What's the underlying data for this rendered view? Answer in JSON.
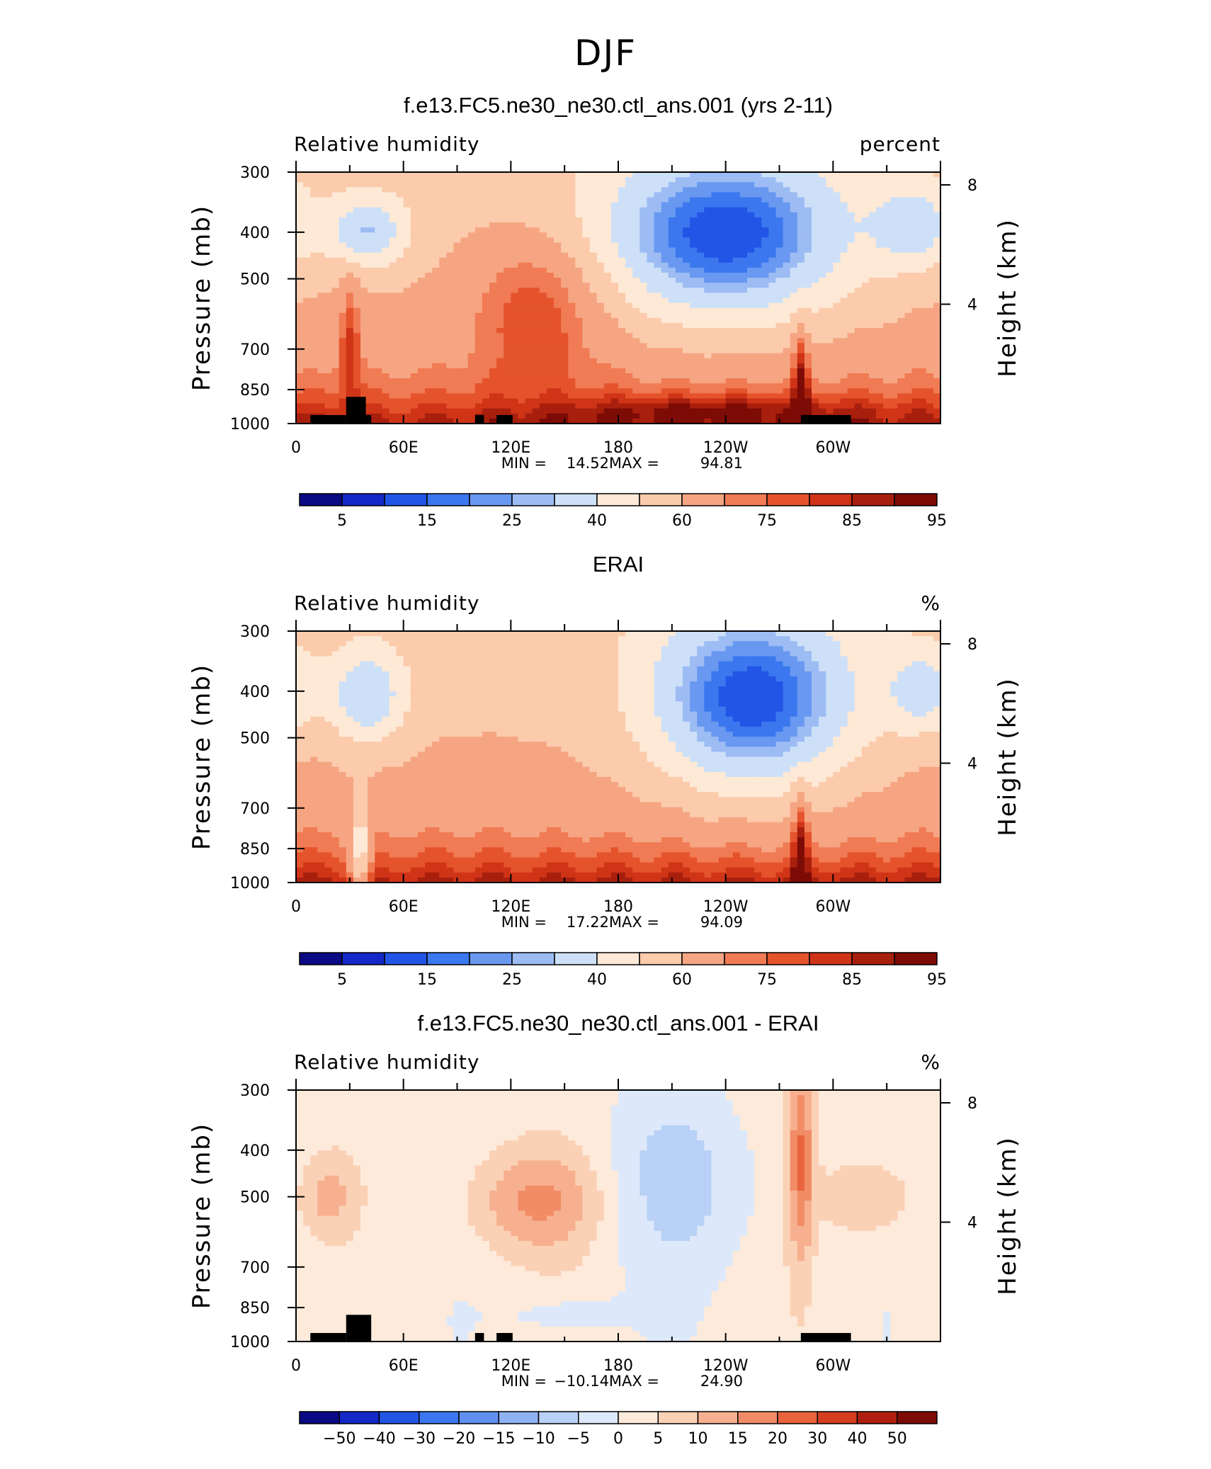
{
  "figure_title": "DJF",
  "chart_data": [
    {
      "type": "heatmap",
      "title": "f.e13.FC5.ne30_ne30.ctl_ans.001 (yrs 2-11)",
      "left_label": "Relative humidity",
      "right_label": "percent",
      "x_tick_labels": [
        "0",
        "60E",
        "120E",
        "180",
        "120W",
        "60W"
      ],
      "x_tick_longitudes": [
        0,
        60,
        120,
        180,
        240,
        300
      ],
      "xlim": [
        0,
        360
      ],
      "y_tick_labels": [
        "300",
        "400",
        "500",
        "700",
        "850",
        "1000"
      ],
      "y_tick_values": [
        300,
        400,
        500,
        700,
        850,
        1000
      ],
      "ylabel": "Pressure (mb)",
      "ylim": [
        1000,
        300
      ],
      "y_scale": "log",
      "y2label": "Height (km)",
      "y2_tick_labels": [
        "4",
        "8"
      ],
      "y2_tick_values": [
        4,
        8
      ],
      "stats": {
        "min_label": "MIN =",
        "min": "14.52",
        "max_label": "MAX =",
        "max": "94.81"
      },
      "colorbar": {
        "labels": [
          "5",
          "15",
          "25",
          "40",
          "60",
          "75",
          "85",
          "95"
        ],
        "colors": [
          "#0a0a85",
          "#1428c8",
          "#2255e6",
          "#3b77ee",
          "#6898f0",
          "#9dbcf4",
          "#cde0f8",
          "#fde9d6",
          "#fbcbac",
          "#f6a582",
          "#f07b54",
          "#e5532c",
          "#cf3417",
          "#a81f0d",
          "#7d0b06"
        ]
      },
      "terrain": [
        [
          8,
          28,
          960
        ],
        [
          28,
          39,
          880
        ],
        [
          39,
          42,
          960
        ],
        [
          100,
          105,
          960
        ],
        [
          112,
          121,
          960
        ],
        [
          282,
          310,
          960
        ]
      ],
      "features": [
        {
          "lon": 40,
          "p": 400,
          "sx": 16,
          "sy": 0.12,
          "v": -28
        },
        {
          "lon": 240,
          "p": 410,
          "sx": 48,
          "sy": 0.28,
          "v": -48
        },
        {
          "lon": 345,
          "p": 390,
          "sx": 16,
          "sy": 0.14,
          "v": -22
        },
        {
          "lon": 135,
          "p": 560,
          "sx": 26,
          "sy": 0.25,
          "v": 18
        },
        {
          "lon": 30,
          "p": 680,
          "sx": 4,
          "sy": 0.22,
          "v": 18
        },
        {
          "lon": 282,
          "p": 860,
          "sx": 3,
          "sy": 0.22,
          "v": 25
        },
        {
          "lon": 230,
          "p": 940,
          "sx": 60,
          "sy": 0.05,
          "v": 12
        }
      ]
    },
    {
      "type": "heatmap",
      "title": "ERAI",
      "left_label": "Relative humidity",
      "right_label": "%",
      "x_tick_labels": [
        "0",
        "60E",
        "120E",
        "180",
        "120W",
        "60W"
      ],
      "x_tick_longitudes": [
        0,
        60,
        120,
        180,
        240,
        300
      ],
      "xlim": [
        0,
        360
      ],
      "y_tick_labels": [
        "300",
        "400",
        "500",
        "700",
        "850",
        "1000"
      ],
      "y_tick_values": [
        300,
        400,
        500,
        700,
        850,
        1000
      ],
      "ylabel": "Pressure (mb)",
      "ylim": [
        1000,
        300
      ],
      "y_scale": "log",
      "y2label": "Height (km)",
      "y2_tick_labels": [
        "4",
        "8"
      ],
      "y2_tick_values": [
        4,
        8
      ],
      "stats": {
        "min_label": "MIN =",
        "min": "17.22",
        "max_label": "MAX =",
        "max": "94.09"
      },
      "colorbar": {
        "labels": [
          "5",
          "15",
          "25",
          "40",
          "60",
          "75",
          "85",
          "95"
        ],
        "colors": [
          "#0a0a85",
          "#1428c8",
          "#2255e6",
          "#3b77ee",
          "#6898f0",
          "#9dbcf4",
          "#cde0f8",
          "#fde9d6",
          "#fbcbac",
          "#f6a582",
          "#f07b54",
          "#e5532c",
          "#cf3417",
          "#a81f0d",
          "#7d0b06"
        ]
      },
      "terrain": [],
      "features": [
        {
          "lon": 40,
          "p": 410,
          "sx": 15,
          "sy": 0.16,
          "v": -28
        },
        {
          "lon": 255,
          "p": 420,
          "sx": 40,
          "sy": 0.3,
          "v": -48
        },
        {
          "lon": 350,
          "p": 400,
          "sx": 14,
          "sy": 0.14,
          "v": -22
        },
        {
          "lon": 36,
          "p": 900,
          "sx": 4,
          "sy": 0.2,
          "v": -30
        },
        {
          "lon": 282,
          "p": 860,
          "sx": 3,
          "sy": 0.22,
          "v": 22
        }
      ]
    },
    {
      "type": "heatmap",
      "title": "f.e13.FC5.ne30_ne30.ctl_ans.001 - ERAI",
      "left_label": "Relative humidity",
      "right_label": "%",
      "x_tick_labels": [
        "0",
        "60E",
        "120E",
        "180",
        "120W",
        "60W"
      ],
      "x_tick_longitudes": [
        0,
        60,
        120,
        180,
        240,
        300
      ],
      "xlim": [
        0,
        360
      ],
      "y_tick_labels": [
        "300",
        "400",
        "500",
        "700",
        "850",
        "1000"
      ],
      "y_tick_values": [
        300,
        400,
        500,
        700,
        850,
        1000
      ],
      "ylabel": "Pressure (mb)",
      "ylim": [
        1000,
        300
      ],
      "y_scale": "log",
      "y2label": "Height (km)",
      "y2_tick_labels": [
        "4",
        "8"
      ],
      "y2_tick_values": [
        4,
        8
      ],
      "stats": {
        "min_label": "MIN =",
        "min": "−10.14",
        "max_label": "MAX =",
        "max": "24.90"
      },
      "colorbar": {
        "labels": [
          "−50",
          "−40",
          "−30",
          "−20",
          "−15",
          "−10",
          "−5",
          "0",
          "5",
          "10",
          "15",
          "20",
          "30",
          "40",
          "50"
        ],
        "colors": [
          "#0a0a85",
          "#1428c8",
          "#2255e6",
          "#3b77ee",
          "#5f90f0",
          "#8fb2f3",
          "#b9d1f6",
          "#dde9fa",
          "#fdeadb",
          "#fbd1b6",
          "#f7b08f",
          "#f18c66",
          "#e9633c",
          "#d53d1f",
          "#b01f0f",
          "#7d0b06"
        ]
      },
      "terrain": [
        [
          8,
          28,
          960
        ],
        [
          28,
          42,
          880
        ],
        [
          100,
          105,
          960
        ],
        [
          112,
          121,
          960
        ],
        [
          282,
          310,
          960
        ]
      ],
      "features": [
        {
          "lon": 135,
          "p": 510,
          "sx": 28,
          "sy": 0.18,
          "v": 14
        },
        {
          "lon": 18,
          "p": 500,
          "sx": 10,
          "sy": 0.12,
          "v": 9
        },
        {
          "lon": 320,
          "p": 500,
          "sx": 18,
          "sy": 0.14,
          "v": 9
        },
        {
          "lon": 210,
          "p": 470,
          "sx": 36,
          "sy": 0.3,
          "v": -8
        },
        {
          "lon": 282,
          "p": 420,
          "sx": 5,
          "sy": 0.35,
          "v": 18
        },
        {
          "lon": 150,
          "p": 880,
          "sx": 22,
          "sy": 0.08,
          "v": -5
        }
      ]
    }
  ]
}
